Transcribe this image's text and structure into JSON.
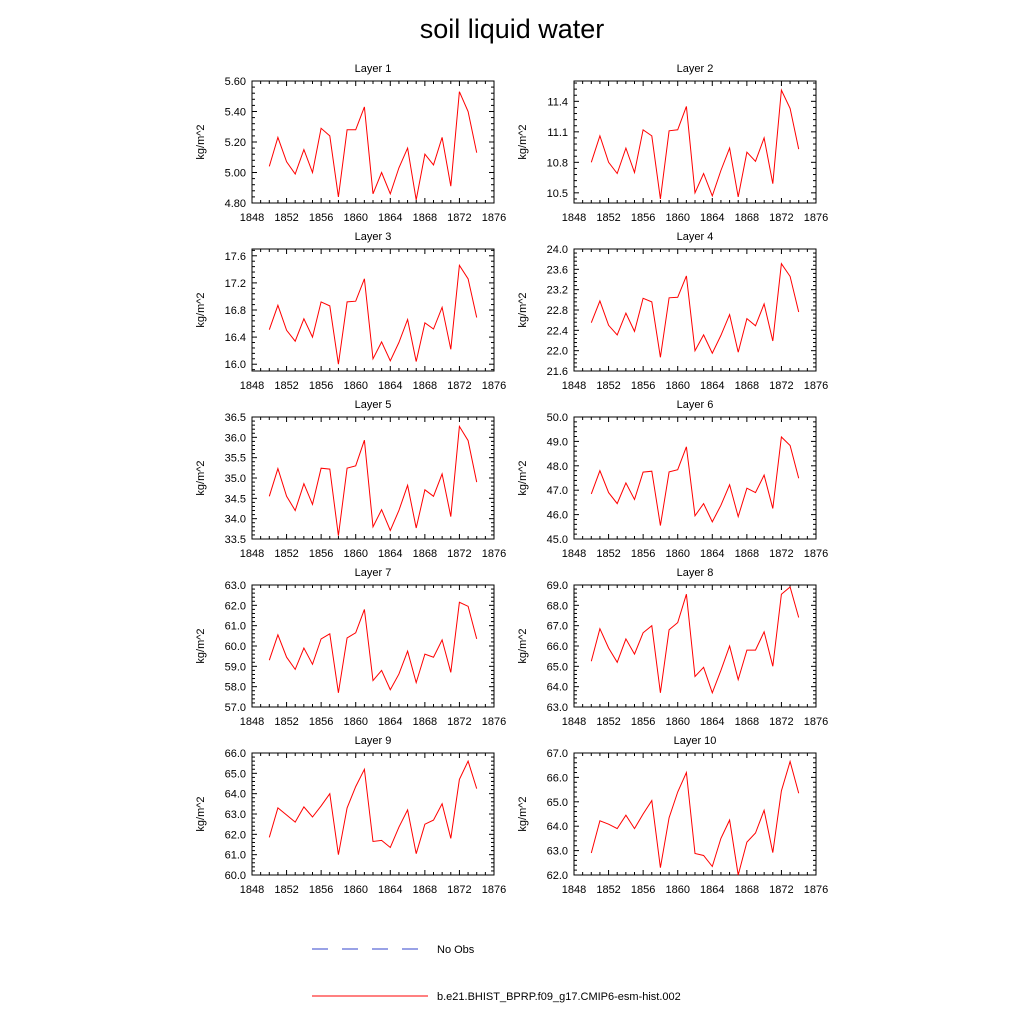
{
  "title": "soil liquid water",
  "legend": [
    {
      "label": "No Obs",
      "color": "#3344cc",
      "style": "dashed"
    },
    {
      "label": "b.e21.BHIST_BPRP.f09_g17.CMIP6-esm-hist.002",
      "color": "#ff0000",
      "style": "solid"
    }
  ],
  "chart_data": [
    {
      "type": "line",
      "title": "Layer 1",
      "ylabel": "kg/m^2",
      "xlim": [
        1848,
        1876
      ],
      "ylim": [
        4.8,
        5.6
      ],
      "xticks": [
        "1848",
        "1852",
        "1856",
        "1860",
        "1864",
        "1868",
        "1872",
        "1876"
      ],
      "yticks": [
        "4.80",
        "5.00",
        "5.20",
        "5.40",
        "5.60"
      ],
      "x": [
        1850,
        1851,
        1852,
        1853,
        1854,
        1855,
        1856,
        1857,
        1858,
        1859,
        1860,
        1861,
        1862,
        1863,
        1864,
        1865,
        1866,
        1867,
        1868,
        1869,
        1870,
        1871,
        1872,
        1873,
        1874
      ],
      "series": [
        {
          "name": "b.e21.BHIST_BPRP.f09_g17.CMIP6-esm-hist.002",
          "color": "#ff0000",
          "values": [
            5.04,
            5.23,
            5.07,
            4.99,
            5.15,
            5.0,
            5.29,
            5.24,
            4.84,
            5.28,
            5.28,
            5.43,
            4.86,
            5.0,
            4.86,
            5.03,
            5.16,
            4.82,
            5.12,
            5.05,
            5.23,
            4.91,
            5.53,
            5.4,
            5.13
          ]
        }
      ]
    },
    {
      "type": "line",
      "title": "Layer 2",
      "ylabel": "kg/m^2",
      "xlim": [
        1848,
        1876
      ],
      "ylim": [
        10.4,
        11.6
      ],
      "xticks": [
        "1848",
        "1852",
        "1856",
        "1860",
        "1864",
        "1868",
        "1872",
        "1876"
      ],
      "yticks": [
        "10.5",
        "10.8",
        "11.1",
        "11.4"
      ],
      "x": [
        1850,
        1851,
        1852,
        1853,
        1854,
        1855,
        1856,
        1857,
        1858,
        1859,
        1860,
        1861,
        1862,
        1863,
        1864,
        1865,
        1866,
        1867,
        1868,
        1869,
        1870,
        1871,
        1872,
        1873,
        1874
      ],
      "series": [
        {
          "name": "b.e21.BHIST_BPRP.f09_g17.CMIP6-esm-hist.002",
          "color": "#ff0000",
          "values": [
            10.8,
            11.06,
            10.8,
            10.69,
            10.94,
            10.7,
            11.12,
            11.06,
            10.44,
            11.11,
            11.12,
            11.35,
            10.5,
            10.69,
            10.47,
            10.72,
            10.94,
            10.46,
            10.9,
            10.81,
            11.04,
            10.59,
            11.51,
            11.33,
            10.93
          ]
        }
      ]
    },
    {
      "type": "line",
      "title": "Layer 3",
      "ylabel": "kg/m^2",
      "xlim": [
        1848,
        1876
      ],
      "ylim": [
        15.9,
        17.7
      ],
      "xticks": [
        "1848",
        "1852",
        "1856",
        "1860",
        "1864",
        "1868",
        "1872",
        "1876"
      ],
      "yticks": [
        "16.0",
        "16.4",
        "16.8",
        "17.2",
        "17.6"
      ],
      "x": [
        1850,
        1851,
        1852,
        1853,
        1854,
        1855,
        1856,
        1857,
        1858,
        1859,
        1860,
        1861,
        1862,
        1863,
        1864,
        1865,
        1866,
        1867,
        1868,
        1869,
        1870,
        1871,
        1872,
        1873,
        1874
      ],
      "series": [
        {
          "name": "b.e21.BHIST_BPRP.f09_g17.CMIP6-esm-hist.002",
          "color": "#ff0000",
          "values": [
            16.51,
            16.87,
            16.5,
            16.34,
            16.67,
            16.4,
            16.92,
            16.86,
            16.0,
            16.92,
            16.93,
            17.26,
            16.08,
            16.33,
            16.05,
            16.32,
            16.66,
            16.04,
            16.61,
            16.52,
            16.84,
            16.22,
            17.46,
            17.26,
            16.69
          ]
        }
      ]
    },
    {
      "type": "line",
      "title": "Layer 4",
      "ylabel": "kg/m^2",
      "xlim": [
        1848,
        1876
      ],
      "ylim": [
        21.6,
        24.0
      ],
      "xticks": [
        "1848",
        "1852",
        "1856",
        "1860",
        "1864",
        "1868",
        "1872",
        "1876"
      ],
      "yticks": [
        "21.6",
        "22.0",
        "22.4",
        "22.8",
        "23.2",
        "23.6",
        "24.0"
      ],
      "x": [
        1850,
        1851,
        1852,
        1853,
        1854,
        1855,
        1856,
        1857,
        1858,
        1859,
        1860,
        1861,
        1862,
        1863,
        1864,
        1865,
        1866,
        1867,
        1868,
        1869,
        1870,
        1871,
        1872,
        1873,
        1874
      ],
      "series": [
        {
          "name": "b.e21.BHIST_BPRP.f09_g17.CMIP6-esm-hist.002",
          "color": "#ff0000",
          "values": [
            22.55,
            22.98,
            22.5,
            22.31,
            22.74,
            22.38,
            23.03,
            22.96,
            21.87,
            23.04,
            23.05,
            23.47,
            22.0,
            22.31,
            21.95,
            22.3,
            22.71,
            21.97,
            22.63,
            22.49,
            22.92,
            22.19,
            23.71,
            23.46,
            22.76
          ]
        }
      ]
    },
    {
      "type": "line",
      "title": "Layer 5",
      "ylabel": "kg/m^2",
      "xlim": [
        1848,
        1876
      ],
      "ylim": [
        33.5,
        36.5
      ],
      "xticks": [
        "1848",
        "1852",
        "1856",
        "1860",
        "1864",
        "1868",
        "1872",
        "1876"
      ],
      "yticks": [
        "33.5",
        "34.0",
        "34.5",
        "35.0",
        "35.5",
        "36.0",
        "36.5"
      ],
      "x": [
        1850,
        1851,
        1852,
        1853,
        1854,
        1855,
        1856,
        1857,
        1858,
        1859,
        1860,
        1861,
        1862,
        1863,
        1864,
        1865,
        1866,
        1867,
        1868,
        1869,
        1870,
        1871,
        1872,
        1873,
        1874
      ],
      "series": [
        {
          "name": "b.e21.BHIST_BPRP.f09_g17.CMIP6-esm-hist.002",
          "color": "#ff0000",
          "values": [
            34.55,
            35.23,
            34.55,
            34.2,
            34.86,
            34.35,
            35.24,
            35.22,
            33.58,
            35.24,
            35.3,
            35.93,
            33.8,
            34.22,
            33.71,
            34.2,
            34.82,
            33.77,
            34.71,
            34.55,
            35.1,
            34.05,
            36.27,
            35.92,
            34.9
          ]
        }
      ]
    },
    {
      "type": "line",
      "title": "Layer 6",
      "ylabel": "kg/m^2",
      "xlim": [
        1848,
        1876
      ],
      "ylim": [
        45.0,
        50.0
      ],
      "xticks": [
        "1848",
        "1852",
        "1856",
        "1860",
        "1864",
        "1868",
        "1872",
        "1876"
      ],
      "yticks": [
        "45.0",
        "46.0",
        "47.0",
        "48.0",
        "49.0",
        "50.0"
      ],
      "x": [
        1850,
        1851,
        1852,
        1853,
        1854,
        1855,
        1856,
        1857,
        1858,
        1859,
        1860,
        1861,
        1862,
        1863,
        1864,
        1865,
        1866,
        1867,
        1868,
        1869,
        1870,
        1871,
        1872,
        1873,
        1874
      ],
      "series": [
        {
          "name": "b.e21.BHIST_BPRP.f09_g17.CMIP6-esm-hist.002",
          "color": "#ff0000",
          "values": [
            46.85,
            47.8,
            46.9,
            46.45,
            47.3,
            46.62,
            47.74,
            47.78,
            45.55,
            47.75,
            47.84,
            48.78,
            45.95,
            46.45,
            45.7,
            46.38,
            47.22,
            45.92,
            47.08,
            46.9,
            47.62,
            46.25,
            49.18,
            48.83,
            47.49
          ]
        }
      ]
    },
    {
      "type": "line",
      "title": "Layer 7",
      "ylabel": "kg/m^2",
      "xlim": [
        1848,
        1876
      ],
      "ylim": [
        57.0,
        63.0
      ],
      "xticks": [
        "1848",
        "1852",
        "1856",
        "1860",
        "1864",
        "1868",
        "1872",
        "1876"
      ],
      "yticks": [
        "57.0",
        "58.0",
        "59.0",
        "60.0",
        "61.0",
        "62.0",
        "63.0"
      ],
      "x": [
        1850,
        1851,
        1852,
        1853,
        1854,
        1855,
        1856,
        1857,
        1858,
        1859,
        1860,
        1861,
        1862,
        1863,
        1864,
        1865,
        1866,
        1867,
        1868,
        1869,
        1870,
        1871,
        1872,
        1873,
        1874
      ],
      "series": [
        {
          "name": "b.e21.BHIST_BPRP.f09_g17.CMIP6-esm-hist.002",
          "color": "#ff0000",
          "values": [
            59.3,
            60.55,
            59.45,
            58.85,
            59.9,
            59.1,
            60.35,
            60.6,
            57.7,
            60.4,
            60.65,
            61.8,
            58.3,
            58.8,
            57.85,
            58.62,
            59.75,
            58.2,
            59.6,
            59.45,
            60.3,
            58.7,
            62.15,
            61.95,
            60.35
          ]
        }
      ]
    },
    {
      "type": "line",
      "title": "Layer 8",
      "ylabel": "kg/m^2",
      "xlim": [
        1848,
        1876
      ],
      "ylim": [
        63.0,
        69.0
      ],
      "xticks": [
        "1848",
        "1852",
        "1856",
        "1860",
        "1864",
        "1868",
        "1872",
        "1876"
      ],
      "yticks": [
        "63.0",
        "64.0",
        "65.0",
        "66.0",
        "67.0",
        "68.0",
        "69.0"
      ],
      "x": [
        1850,
        1851,
        1852,
        1853,
        1854,
        1855,
        1856,
        1857,
        1858,
        1859,
        1860,
        1861,
        1862,
        1863,
        1864,
        1865,
        1866,
        1867,
        1868,
        1869,
        1870,
        1871,
        1872,
        1873,
        1874
      ],
      "series": [
        {
          "name": "b.e21.BHIST_BPRP.f09_g17.CMIP6-esm-hist.002",
          "color": "#ff0000",
          "values": [
            65.25,
            66.85,
            65.9,
            65.2,
            66.35,
            65.6,
            66.65,
            67.0,
            63.7,
            66.8,
            67.15,
            68.55,
            64.5,
            64.95,
            63.7,
            64.8,
            66.0,
            64.35,
            65.8,
            65.8,
            66.7,
            65.0,
            68.55,
            68.9,
            67.4
          ]
        }
      ]
    },
    {
      "type": "line",
      "title": "Layer 9",
      "ylabel": "kg/m^2",
      "xlim": [
        1848,
        1876
      ],
      "ylim": [
        60.0,
        66.0
      ],
      "xticks": [
        "1848",
        "1852",
        "1856",
        "1860",
        "1864",
        "1868",
        "1872",
        "1876"
      ],
      "yticks": [
        "60.0",
        "61.0",
        "62.0",
        "63.0",
        "64.0",
        "65.0",
        "66.0"
      ],
      "x": [
        1850,
        1851,
        1852,
        1853,
        1854,
        1855,
        1856,
        1857,
        1858,
        1859,
        1860,
        1861,
        1862,
        1863,
        1864,
        1865,
        1866,
        1867,
        1868,
        1869,
        1870,
        1871,
        1872,
        1873,
        1874
      ],
      "series": [
        {
          "name": "b.e21.BHIST_BPRP.f09_g17.CMIP6-esm-hist.002",
          "color": "#ff0000",
          "values": [
            61.85,
            63.3,
            62.95,
            62.6,
            63.35,
            62.85,
            63.4,
            64.0,
            61.0,
            63.3,
            64.35,
            65.2,
            61.65,
            61.7,
            61.35,
            62.35,
            63.2,
            61.05,
            62.5,
            62.7,
            63.5,
            61.8,
            64.7,
            65.6,
            64.25
          ]
        }
      ]
    },
    {
      "type": "line",
      "title": "Layer 10",
      "ylabel": "kg/m^2",
      "xlim": [
        1848,
        1876
      ],
      "ylim": [
        62.0,
        67.0
      ],
      "xticks": [
        "1848",
        "1852",
        "1856",
        "1860",
        "1864",
        "1868",
        "1872",
        "1876"
      ],
      "yticks": [
        "62.0",
        "63.0",
        "64.0",
        "65.0",
        "66.0",
        "67.0"
      ],
      "x": [
        1850,
        1851,
        1852,
        1853,
        1854,
        1855,
        1856,
        1857,
        1858,
        1859,
        1860,
        1861,
        1862,
        1863,
        1864,
        1865,
        1866,
        1867,
        1868,
        1869,
        1870,
        1871,
        1872,
        1873,
        1874
      ],
      "series": [
        {
          "name": "b.e21.BHIST_BPRP.f09_g17.CMIP6-esm-hist.002",
          "color": "#ff0000",
          "values": [
            62.9,
            64.22,
            64.08,
            63.9,
            64.45,
            63.9,
            64.5,
            65.05,
            62.3,
            64.35,
            65.4,
            66.2,
            62.88,
            62.8,
            62.35,
            63.5,
            64.25,
            62.0,
            63.35,
            63.72,
            64.65,
            62.92,
            65.45,
            66.65,
            65.35
          ]
        }
      ]
    }
  ]
}
